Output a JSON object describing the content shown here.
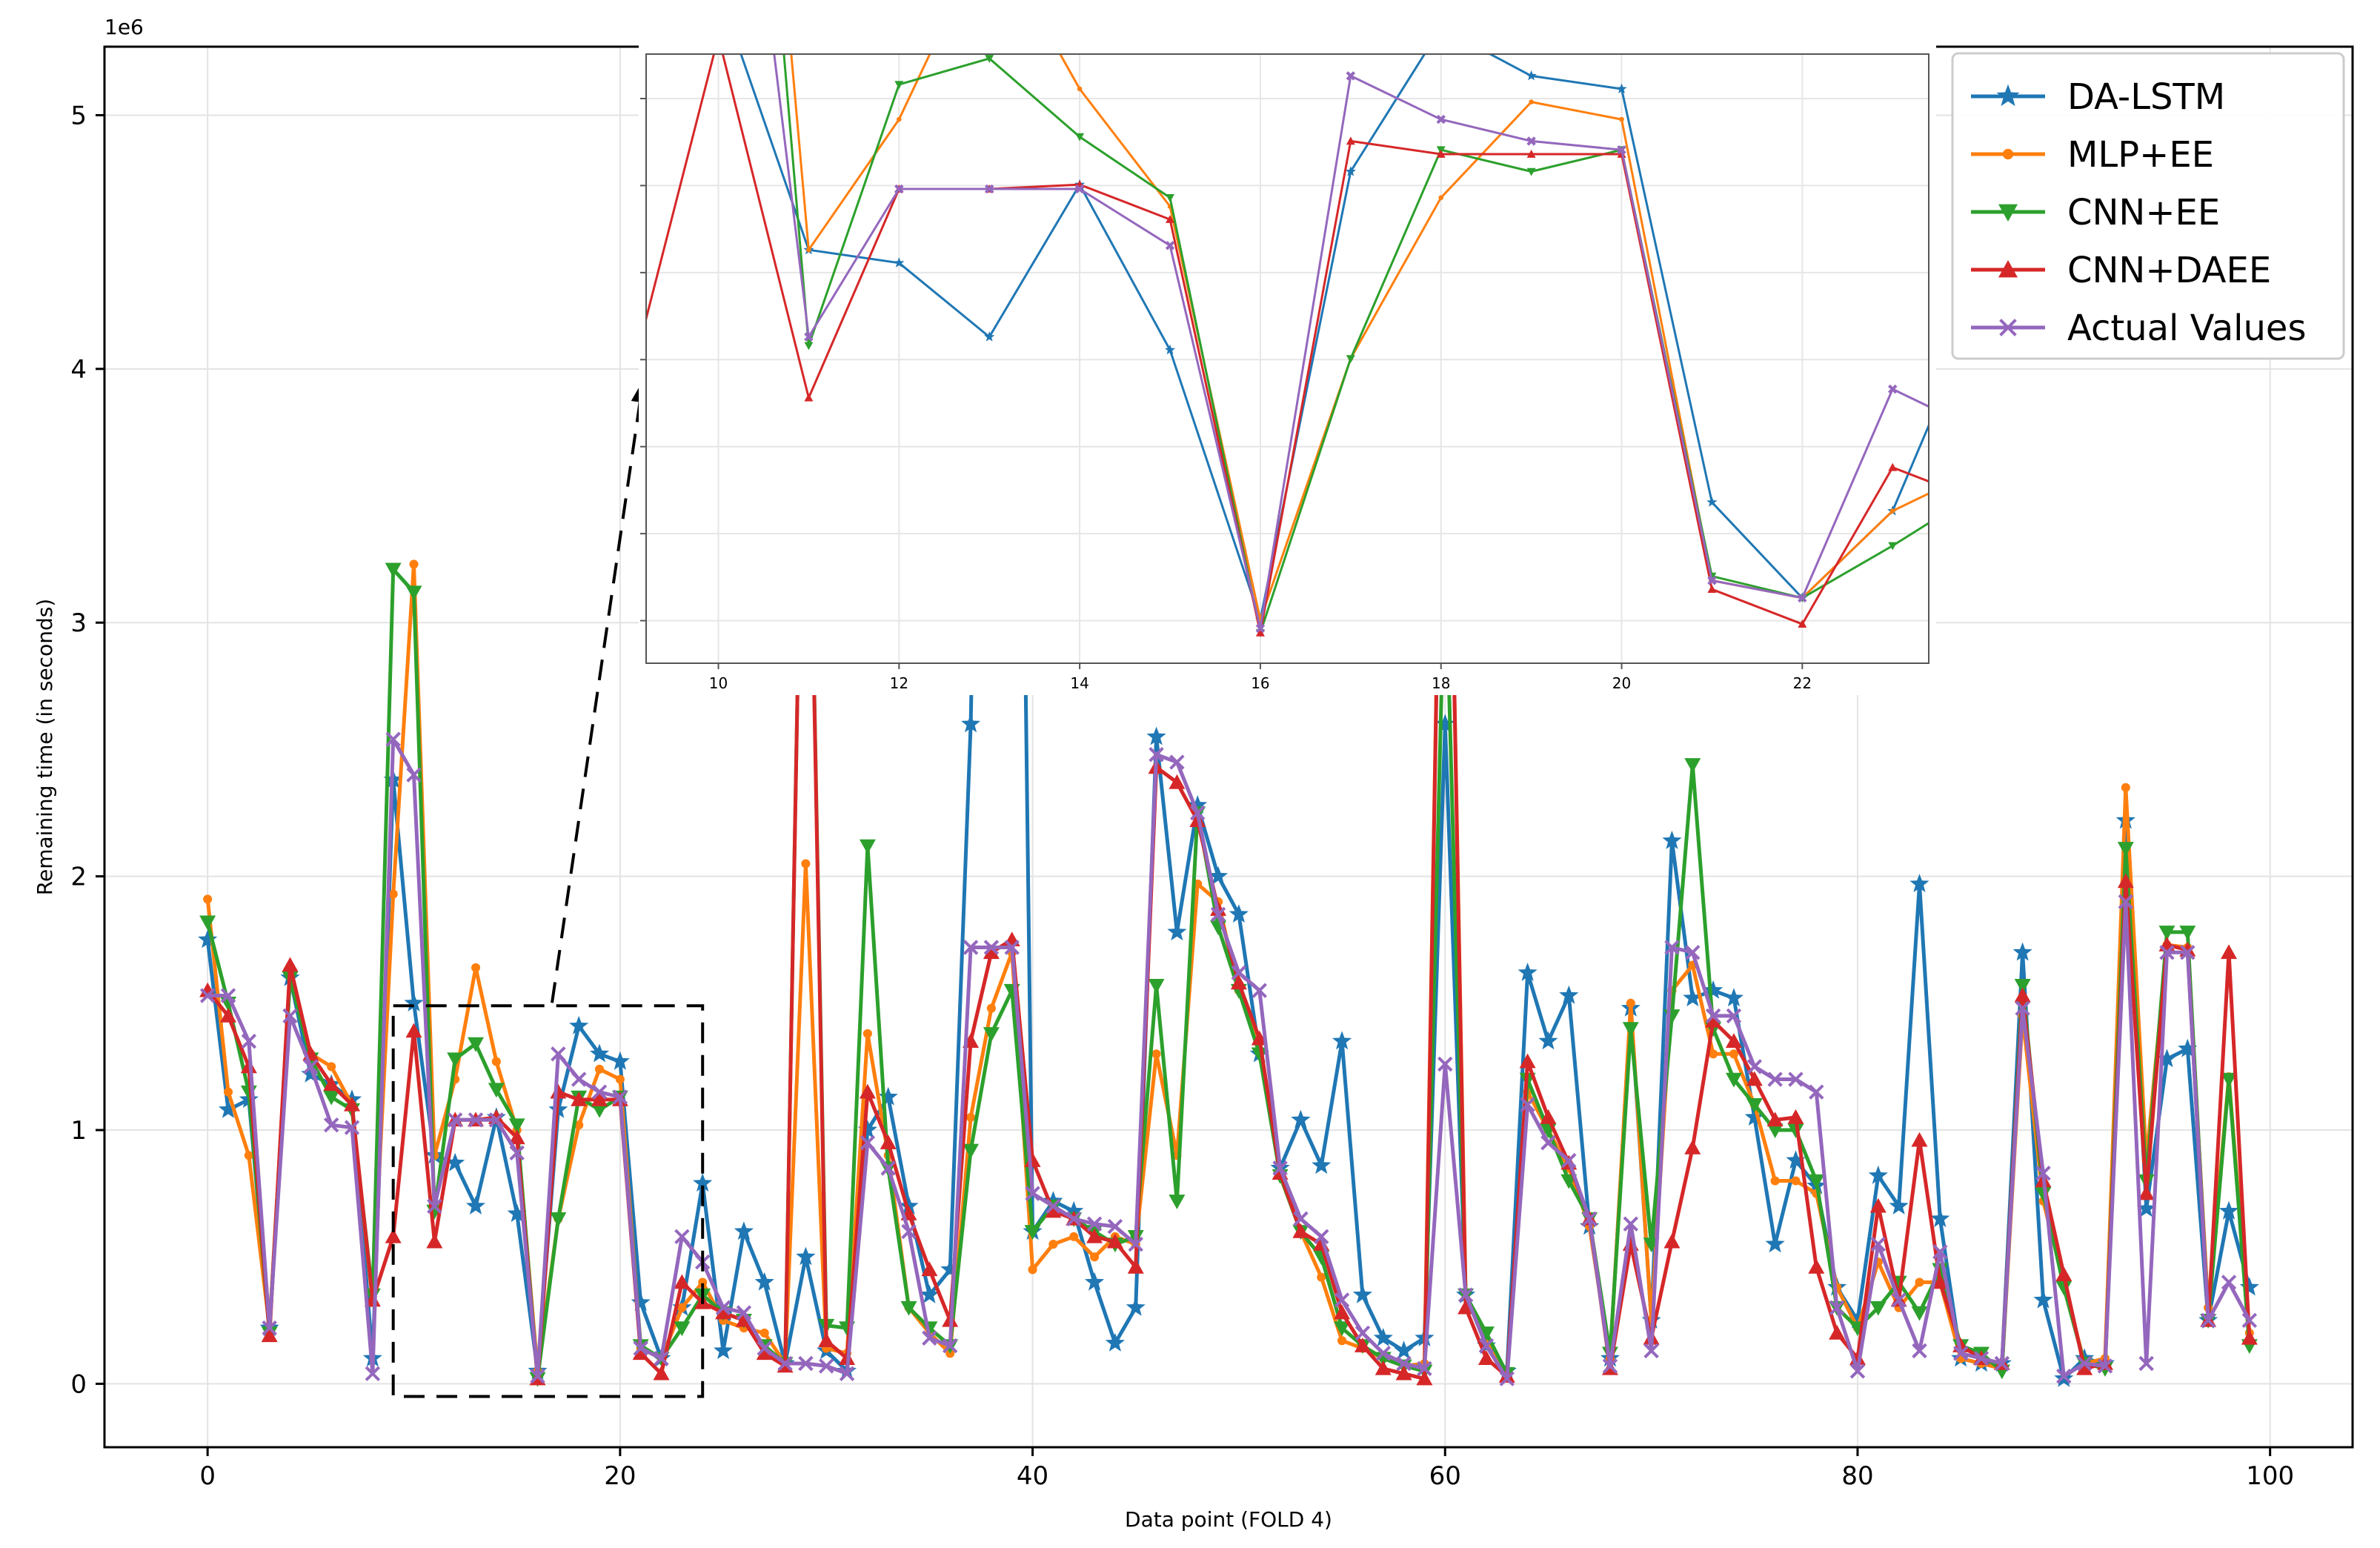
{
  "chart_data": {
    "type": "line",
    "xlabel": "Data point (FOLD 4)",
    "ylabel": "Remaining time (in seconds)",
    "y_offset_label": "1e6",
    "xlim": [
      -5,
      104
    ],
    "ylim": [
      -0.25,
      5.27
    ],
    "x_ticks": [
      0,
      20,
      40,
      60,
      80,
      100
    ],
    "y_ticks": [
      0,
      1,
      2,
      3,
      4,
      5
    ],
    "grid": true,
    "legend_position": "top-right",
    "x": [
      0,
      1,
      2,
      3,
      4,
      5,
      6,
      7,
      8,
      9,
      10,
      11,
      12,
      13,
      14,
      15,
      16,
      17,
      18,
      19,
      20,
      21,
      22,
      23,
      24,
      25,
      26,
      27,
      28,
      29,
      30,
      31,
      32,
      33,
      34,
      35,
      36,
      37,
      38,
      39,
      40,
      41,
      42,
      43,
      44,
      45,
      46,
      47,
      48,
      49,
      50,
      51,
      52,
      53,
      54,
      55,
      56,
      57,
      58,
      59,
      60,
      61,
      62,
      63,
      64,
      65,
      66,
      67,
      68,
      69,
      70,
      71,
      72,
      73,
      74,
      75,
      76,
      77,
      78,
      79,
      80,
      81,
      82,
      83,
      84,
      85,
      86,
      87,
      88,
      89,
      90,
      91,
      92,
      93,
      94,
      95,
      96,
      97,
      98,
      99
    ],
    "series": [
      {
        "name": "DA-LSTM",
        "color": "#1f77b4",
        "marker": "star",
        "values": [
          1.75,
          1.08,
          1.12,
          0.22,
          1.6,
          1.22,
          1.18,
          1.12,
          0.1,
          2.38,
          1.5,
          0.9,
          0.87,
          0.7,
          1.05,
          0.67,
          0.05,
          1.08,
          1.41,
          1.3,
          1.27,
          0.32,
          0.1,
          0.3,
          0.79,
          0.13,
          0.6,
          0.4,
          0.08,
          0.5,
          0.13,
          0.05,
          1.0,
          1.13,
          0.7,
          0.35,
          0.45,
          2.6,
          7.0,
          7.0,
          0.6,
          0.72,
          0.68,
          0.4,
          0.16,
          0.3,
          2.55,
          1.78,
          2.28,
          2.0,
          1.85,
          1.3,
          0.85,
          1.04,
          0.86,
          1.35,
          0.35,
          0.18,
          0.13,
          0.18,
          2.6,
          0.35,
          0.15,
          0.05,
          1.62,
          1.35,
          1.53,
          0.62,
          0.1,
          1.48,
          0.25,
          2.14,
          1.52,
          1.55,
          1.52,
          1.05,
          0.55,
          0.88,
          0.78,
          0.38,
          0.25,
          0.82,
          0.7,
          1.97,
          0.65,
          0.1,
          0.08,
          0.08,
          1.7,
          0.33,
          0.02,
          0.1,
          0.08,
          2.22,
          0.69,
          1.28,
          1.32,
          0.25,
          0.68,
          0.38
        ]
      },
      {
        "name": "MLP+EE",
        "color": "#ff7f0e",
        "marker": "dot",
        "values": [
          1.91,
          1.15,
          0.9,
          0.22,
          1.62,
          1.3,
          1.25,
          1.1,
          0.32,
          1.93,
          3.23,
          0.9,
          1.2,
          1.64,
          1.27,
          1.0,
          0.05,
          0.65,
          1.02,
          1.24,
          1.2,
          0.14,
          0.1,
          0.3,
          0.4,
          0.25,
          0.22,
          0.2,
          0.08,
          2.05,
          0.14,
          0.12,
          1.38,
          0.9,
          0.3,
          0.2,
          0.12,
          1.05,
          1.48,
          1.7,
          0.45,
          0.55,
          0.58,
          0.5,
          0.58,
          0.55,
          1.3,
          0.9,
          1.97,
          1.9,
          1.55,
          1.35,
          0.82,
          0.6,
          0.42,
          0.17,
          0.14,
          0.1,
          0.07,
          0.08,
          4.7,
          0.35,
          0.17,
          0.03,
          1.15,
          1.0,
          0.85,
          0.62,
          0.1,
          1.5,
          0.25,
          1.55,
          1.65,
          1.3,
          1.3,
          1.1,
          0.8,
          0.8,
          0.75,
          0.38,
          0.22,
          0.48,
          0.3,
          0.4,
          0.4,
          0.1,
          0.08,
          0.06,
          1.45,
          0.72,
          0.4,
          0.08,
          0.1,
          2.35,
          0.88,
          1.73,
          1.72,
          0.3,
          1.21,
          0.2
        ]
      },
      {
        "name": "CNN+EE",
        "color": "#2ca02c",
        "marker": "triangle-down",
        "values": [
          1.82,
          1.5,
          1.15,
          0.2,
          1.6,
          1.28,
          1.13,
          1.08,
          0.35,
          3.21,
          3.12,
          0.68,
          1.28,
          1.34,
          1.16,
          1.02,
          0.02,
          0.65,
          1.13,
          1.08,
          1.13,
          0.15,
          0.1,
          0.22,
          0.35,
          0.28,
          0.25,
          0.15,
          0.08,
          4.5,
          0.23,
          0.22,
          2.12,
          0.85,
          0.3,
          0.22,
          0.15,
          0.92,
          1.38,
          1.55,
          0.6,
          0.7,
          0.65,
          0.6,
          0.55,
          0.58,
          1.57,
          0.72,
          2.25,
          1.8,
          1.55,
          1.3,
          0.82,
          0.6,
          0.5,
          0.22,
          0.15,
          0.1,
          0.07,
          0.05,
          3.3,
          0.35,
          0.2,
          0.04,
          1.2,
          1.0,
          0.8,
          0.65,
          0.12,
          1.4,
          0.55,
          1.45,
          2.44,
          1.4,
          1.2,
          1.1,
          1.0,
          1.0,
          0.8,
          0.3,
          0.22,
          0.3,
          0.4,
          0.28,
          0.45,
          0.15,
          0.12,
          0.05,
          1.57,
          0.75,
          0.38,
          0.08,
          0.06,
          2.11,
          0.8,
          1.78,
          1.78,
          0.25,
          1.2,
          0.15
        ]
      },
      {
        "name": "CNN+DAEE",
        "color": "#d62728",
        "marker": "triangle-up",
        "values": [
          1.55,
          1.45,
          1.25,
          0.19,
          1.65,
          1.3,
          1.18,
          1.1,
          0.33,
          0.58,
          1.39,
          0.56,
          1.04,
          1.04,
          1.05,
          0.97,
          0.02,
          1.15,
          1.12,
          1.12,
          1.12,
          0.12,
          0.04,
          0.4,
          0.32,
          0.28,
          0.25,
          0.12,
          0.07,
          4.5,
          0.17,
          0.1,
          1.15,
          0.95,
          0.67,
          0.45,
          0.25,
          1.35,
          1.7,
          1.75,
          0.88,
          0.68,
          0.65,
          0.58,
          0.56,
          0.46,
          2.43,
          2.37,
          2.22,
          1.87,
          1.58,
          1.36,
          0.83,
          0.6,
          0.55,
          0.28,
          0.15,
          0.06,
          0.04,
          0.02,
          4.7,
          0.3,
          0.1,
          0.03,
          1.27,
          1.05,
          0.87,
          0.65,
          0.06,
          0.55,
          0.18,
          0.56,
          0.93,
          1.43,
          1.35,
          1.2,
          1.04,
          1.05,
          0.46,
          0.2,
          0.1,
          0.7,
          0.33,
          0.96,
          0.4,
          0.15,
          0.1,
          0.08,
          1.53,
          0.8,
          0.43,
          0.06,
          0.08,
          1.98,
          0.75,
          1.73,
          1.71,
          0.25,
          1.7,
          0.18
        ]
      },
      {
        "name": "Actual Values",
        "color": "#9467bd",
        "marker": "x",
        "values": [
          1.53,
          1.53,
          1.35,
          0.22,
          1.45,
          1.25,
          1.02,
          1.01,
          0.04,
          2.54,
          2.4,
          0.7,
          1.04,
          1.04,
          1.04,
          0.91,
          0.03,
          1.3,
          1.2,
          1.15,
          1.13,
          0.14,
          0.1,
          0.58,
          0.48,
          0.3,
          0.28,
          0.14,
          0.08,
          0.08,
          0.07,
          0.04,
          0.95,
          0.85,
          0.6,
          0.18,
          0.15,
          1.72,
          1.72,
          1.72,
          0.75,
          0.7,
          0.65,
          0.63,
          0.62,
          0.55,
          2.48,
          2.45,
          2.25,
          1.85,
          1.62,
          1.55,
          0.85,
          0.65,
          0.58,
          0.33,
          0.2,
          0.12,
          0.08,
          0.06,
          1.26,
          0.35,
          0.15,
          0.02,
          1.1,
          0.95,
          0.88,
          0.65,
          0.07,
          0.63,
          0.13,
          1.72,
          1.7,
          1.45,
          1.45,
          1.25,
          1.2,
          1.2,
          1.15,
          0.3,
          0.05,
          0.55,
          0.33,
          0.13,
          0.52,
          0.12,
          0.1,
          0.08,
          1.48,
          0.83,
          0.03,
          0.08,
          0.07,
          1.9,
          0.08,
          1.7,
          1.7,
          0.25,
          0.4,
          0.25
        ]
      }
    ],
    "inset": {
      "x_range": [
        9.2,
        23.4
      ],
      "x_ticks": [
        10,
        12,
        14,
        16,
        18,
        20,
        22
      ],
      "source_box_x": [
        9.0,
        24.0
      ],
      "source_box_y": [
        -0.05,
        1.49
      ]
    }
  }
}
